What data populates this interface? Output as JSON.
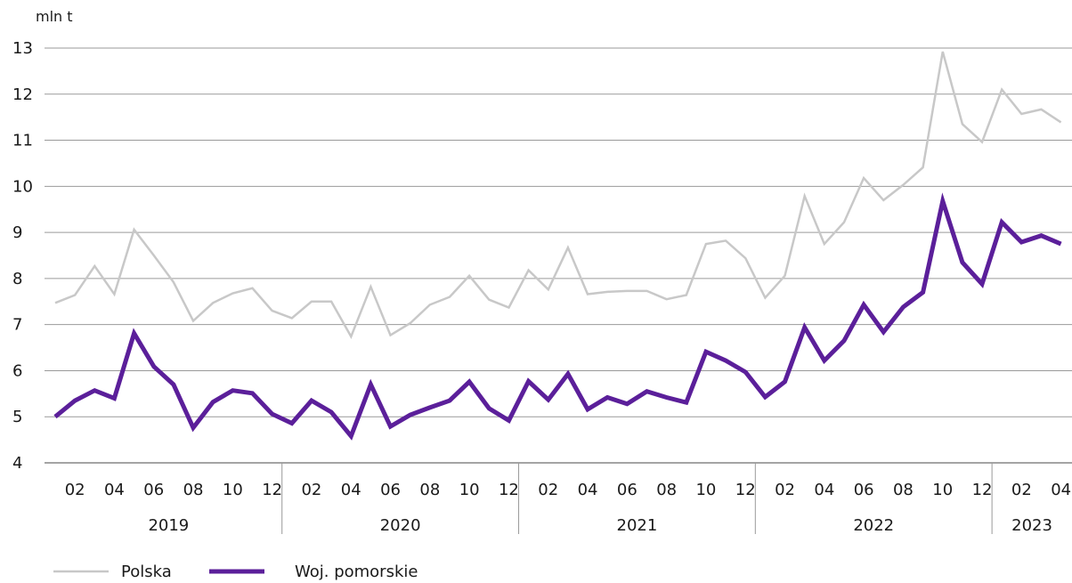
{
  "chart_data": {
    "type": "line",
    "unit_label": "mln t",
    "ylim": [
      4,
      13
    ],
    "y_ticks": [
      4,
      5,
      6,
      7,
      8,
      9,
      10,
      11,
      12,
      13
    ],
    "grid": "horizontal",
    "legend_position": "bottom-left",
    "month_tick_labels": [
      "02",
      "04",
      "06",
      "08",
      "10",
      "12",
      "02",
      "04",
      "06",
      "08",
      "10",
      "12",
      "02",
      "04",
      "06",
      "08",
      "10",
      "12",
      "02",
      "04",
      "06",
      "08",
      "10",
      "12",
      "02",
      "04"
    ],
    "year_labels": [
      "2019",
      "2020",
      "2021",
      "2022",
      "2023"
    ],
    "x": [
      "2019-01",
      "2019-02",
      "2019-03",
      "2019-04",
      "2019-05",
      "2019-06",
      "2019-07",
      "2019-08",
      "2019-09",
      "2019-10",
      "2019-11",
      "2019-12",
      "2020-01",
      "2020-02",
      "2020-03",
      "2020-04",
      "2020-05",
      "2020-06",
      "2020-07",
      "2020-08",
      "2020-09",
      "2020-10",
      "2020-11",
      "2020-12",
      "2021-01",
      "2021-02",
      "2021-03",
      "2021-04",
      "2021-05",
      "2021-06",
      "2021-07",
      "2021-08",
      "2021-09",
      "2021-10",
      "2021-11",
      "2021-12",
      "2022-01",
      "2022-02",
      "2022-03",
      "2022-04",
      "2022-05",
      "2022-06",
      "2022-07",
      "2022-08",
      "2022-09",
      "2022-10",
      "2022-11",
      "2022-12",
      "2023-01",
      "2023-02",
      "2023-03",
      "2023-04"
    ],
    "series": [
      {
        "name": "Polska",
        "color": "#c8c8c8",
        "values": [
          7.47,
          7.64,
          8.27,
          7.66,
          9.06,
          8.5,
          7.92,
          7.08,
          7.47,
          7.68,
          7.79,
          7.3,
          7.14,
          7.5,
          7.5,
          6.74,
          7.82,
          6.77,
          7.03,
          7.43,
          7.6,
          8.06,
          7.54,
          7.37,
          8.18,
          7.76,
          8.67,
          7.66,
          7.71,
          7.73,
          7.73,
          7.55,
          7.64,
          8.75,
          8.82,
          8.44,
          7.58,
          8.06,
          9.79,
          8.75,
          9.22,
          10.18,
          9.7,
          10.03,
          10.41,
          12.92,
          11.35,
          10.96,
          12.1,
          11.57,
          11.67,
          11.39
        ]
      },
      {
        "name": "Woj. pomorskie",
        "color": "#5b1f9a",
        "values": [
          5.0,
          5.35,
          5.57,
          5.4,
          6.81,
          6.09,
          5.7,
          4.76,
          5.32,
          5.57,
          5.51,
          5.06,
          4.86,
          5.35,
          5.1,
          4.58,
          5.7,
          4.79,
          5.04,
          5.2,
          5.35,
          5.76,
          5.18,
          4.92,
          5.77,
          5.37,
          5.93,
          5.16,
          5.42,
          5.28,
          5.55,
          5.42,
          5.31,
          6.41,
          6.22,
          5.97,
          5.43,
          5.76,
          6.94,
          6.22,
          6.65,
          7.43,
          6.84,
          7.38,
          7.7,
          9.68,
          8.35,
          7.88,
          9.22,
          8.79,
          8.93,
          8.75
        ]
      }
    ]
  }
}
